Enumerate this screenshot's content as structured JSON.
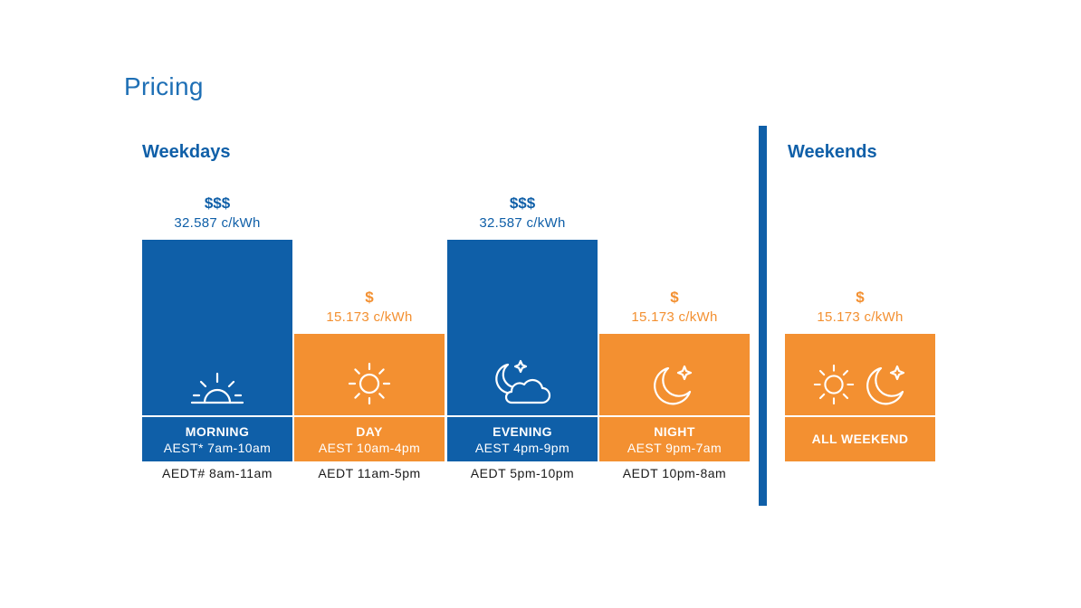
{
  "title": "Pricing",
  "colors": {
    "peak": "#0f5fa8",
    "offpeak": "#f39031",
    "heading": "#0f5fa8",
    "title": "#1e6fb5"
  },
  "weekdays": {
    "heading": "Weekdays"
  },
  "weekends": {
    "heading": "Weekends"
  },
  "chart_data": {
    "type": "bar",
    "title": "",
    "unit": "c/kWh",
    "categories": [
      "MORNING",
      "DAY",
      "EVENING",
      "NIGHT",
      "ALL WEEKEND"
    ],
    "values": [
      32.587,
      15.173,
      32.587,
      15.173,
      15.173
    ],
    "groups": [
      "Weekdays",
      "Weekdays",
      "Weekdays",
      "Weekdays",
      "Weekends"
    ],
    "bars": [
      {
        "name": "MORNING",
        "rate_symbol": "$$$",
        "rate_text": "32.587 c/kWh",
        "value": 32.587,
        "tier": "peak",
        "time": "AEST* 7am-10am",
        "alt_time": "AEDT# 8am-11am",
        "icon": "sunrise-icon"
      },
      {
        "name": "DAY",
        "rate_symbol": "$",
        "rate_text": "15.173 c/kWh",
        "value": 15.173,
        "tier": "offpeak",
        "time": "AEST 10am-4pm",
        "alt_time": "AEDT 11am-5pm",
        "icon": "sun-icon"
      },
      {
        "name": "EVENING",
        "rate_symbol": "$$$",
        "rate_text": "32.587 c/kWh",
        "value": 32.587,
        "tier": "peak",
        "time": "AEST 4pm-9pm",
        "alt_time": "AEDT 5pm-10pm",
        "icon": "moon-cloud-icon"
      },
      {
        "name": "NIGHT",
        "rate_symbol": "$",
        "rate_text": "15.173 c/kWh",
        "value": 15.173,
        "tier": "offpeak",
        "time": "AEST 9pm-7am",
        "alt_time": "AEDT 10pm-8am",
        "icon": "moon-star-icon"
      },
      {
        "name": "ALL WEEKEND",
        "rate_symbol": "$",
        "rate_text": "15.173 c/kWh",
        "value": 15.173,
        "tier": "offpeak",
        "time": "",
        "alt_time": "",
        "icon": "sun-moon-icon"
      }
    ]
  }
}
